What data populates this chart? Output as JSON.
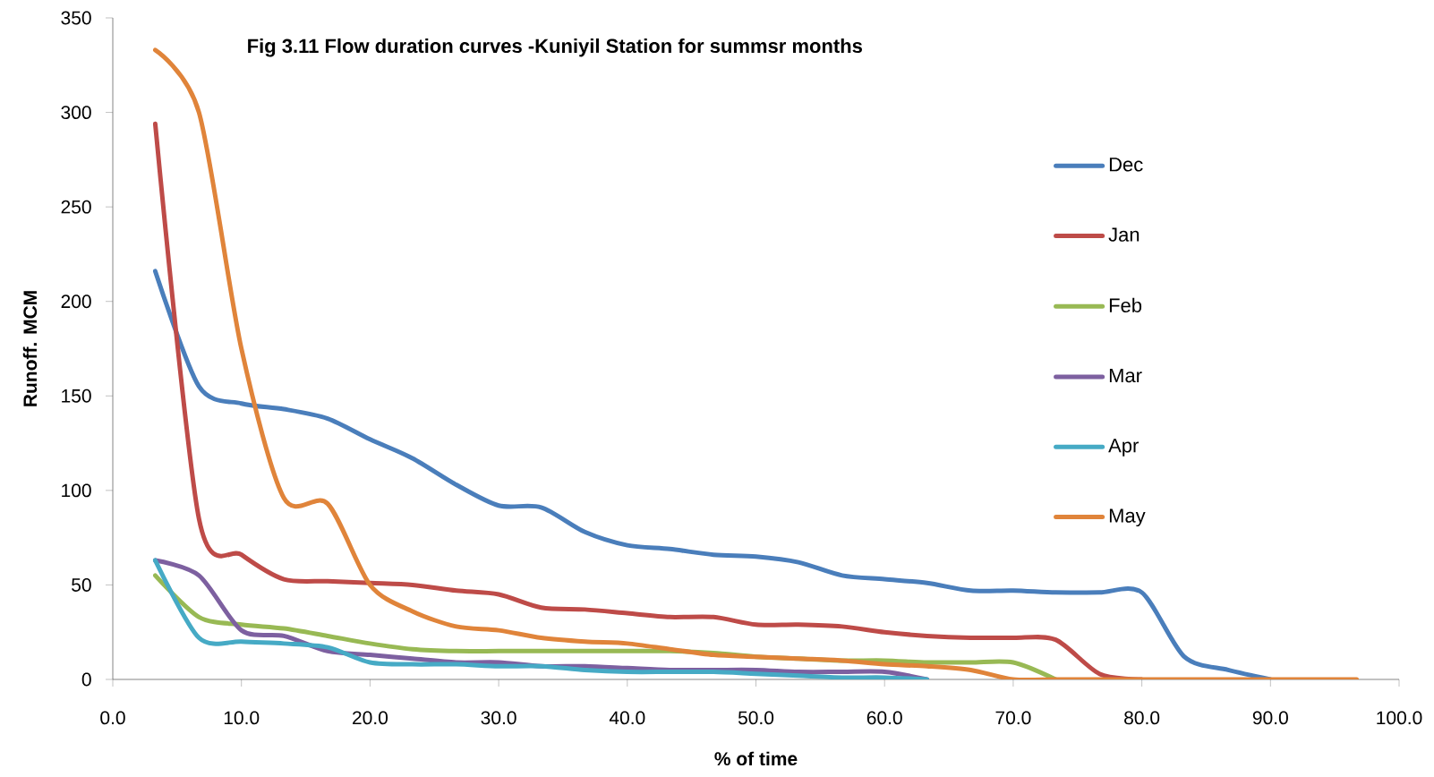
{
  "chart_data": {
    "type": "line",
    "title": "**Fig 3.11 Flow duration curves -Kuniyil Station for summsr months**",
    "xlabel": "% of time",
    "ylabel": "Runoff. MCM",
    "x": [
      3.3,
      6.7,
      10.0,
      13.3,
      16.7,
      20.0,
      23.3,
      26.7,
      30.0,
      33.3,
      36.7,
      40.0,
      43.3,
      46.7,
      50.0,
      53.3,
      56.7,
      60.0,
      63.3,
      66.7,
      70.0,
      73.3,
      76.7,
      80.0,
      83.3,
      86.7,
      90.0,
      93.3,
      96.7
    ],
    "series": [
      {
        "name": "Dec",
        "color": "#4a7ebb",
        "values": [
          216,
          155,
          146,
          143,
          138,
          127,
          117,
          103,
          92,
          91,
          78,
          71,
          69,
          66,
          65,
          62,
          55,
          53,
          51,
          47,
          47,
          46,
          46,
          46,
          12,
          5,
          0,
          null,
          null
        ]
      },
      {
        "name": "Jan",
        "color": "#be4b48",
        "values": [
          294,
          85,
          66,
          53,
          52,
          51,
          50,
          47,
          45,
          38,
          37,
          35,
          33,
          33,
          29,
          29,
          28,
          25,
          23,
          22,
          22,
          21,
          3,
          0,
          null,
          null,
          null,
          null,
          null
        ]
      },
      {
        "name": "Feb",
        "color": "#98b954",
        "values": [
          55,
          33,
          29,
          27,
          23,
          19,
          16,
          15,
          15,
          15,
          15,
          15,
          15,
          14,
          12,
          11,
          10,
          10,
          9,
          9,
          9,
          0,
          null,
          null,
          null,
          null,
          null,
          null,
          null
        ]
      },
      {
        "name": "Mar",
        "color": "#7d60a0",
        "values": [
          63,
          55,
          26,
          23,
          15,
          13,
          11,
          9,
          9,
          7,
          7,
          6,
          5,
          5,
          5,
          4,
          4,
          4,
          0,
          null,
          null,
          null,
          null,
          null,
          null,
          null,
          null,
          null,
          null
        ]
      },
      {
        "name": "Apr",
        "color": "#46aac5",
        "values": [
          63,
          22,
          20,
          19,
          17,
          9,
          8,
          8,
          7,
          7,
          5,
          4,
          4,
          4,
          3,
          2,
          1,
          1,
          0,
          null,
          null,
          null,
          null,
          null,
          null,
          null,
          null,
          null,
          null
        ]
      },
      {
        "name": "May",
        "color": "#e0843a",
        "values": [
          333,
          300,
          175,
          96,
          93,
          50,
          36,
          28,
          26,
          22,
          20,
          19,
          16,
          13,
          12,
          11,
          10,
          8,
          7,
          5,
          0,
          0,
          0,
          0,
          0,
          0,
          0,
          0,
          0
        ]
      }
    ],
    "xlim": [
      0,
      100
    ],
    "xticks": [
      {
        "value": 0,
        "label": "0.0"
      },
      {
        "value": 10,
        "label": "10.0"
      },
      {
        "value": 20,
        "label": "20.0"
      },
      {
        "value": 30,
        "label": "30.0"
      },
      {
        "value": 40,
        "label": "40.0"
      },
      {
        "value": 50,
        "label": "50.0"
      },
      {
        "value": 60,
        "label": "60.0"
      },
      {
        "value": 70,
        "label": "70.0"
      },
      {
        "value": 80,
        "label": "80.0"
      },
      {
        "value": 90,
        "label": "90.0"
      },
      {
        "value": 100,
        "label": "100.0"
      }
    ],
    "ylim": [
      0,
      350
    ],
    "yticks": [
      0,
      50,
      100,
      150,
      200,
      250,
      300,
      350
    ],
    "grid": false,
    "legend": "right",
    "marker": "none",
    "line_style": "solid"
  }
}
